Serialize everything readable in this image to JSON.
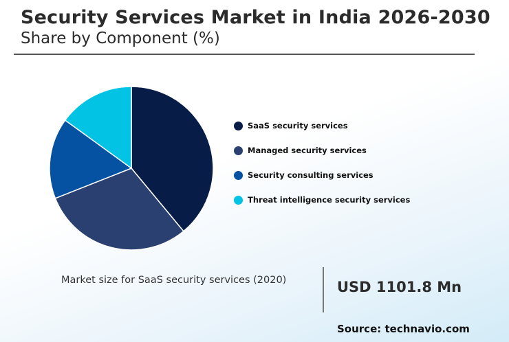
{
  "header": {
    "title": "Security Services Market in India 2026-2030",
    "subtitle": "Share by Component (%)"
  },
  "chart_data": {
    "type": "pie",
    "title": "Security Services Market in India 2026-2030",
    "subtitle": "Share by Component (%)",
    "legend_position": "right",
    "slices": [
      {
        "label": "SaaS security services",
        "value": 39,
        "color": "#071c46"
      },
      {
        "label": "Managed security services",
        "value": 30,
        "color": "#2a4070"
      },
      {
        "label": "Security consulting services",
        "value": 16,
        "color": "#0452a1"
      },
      {
        "label": "Threat intelligence security services",
        "value": 15,
        "color": "#03c3e5"
      }
    ]
  },
  "market_size": {
    "label": "Market size for SaaS security services (2020)",
    "value": "USD 1101.8 Mn"
  },
  "source": "Source: technavio.com"
}
